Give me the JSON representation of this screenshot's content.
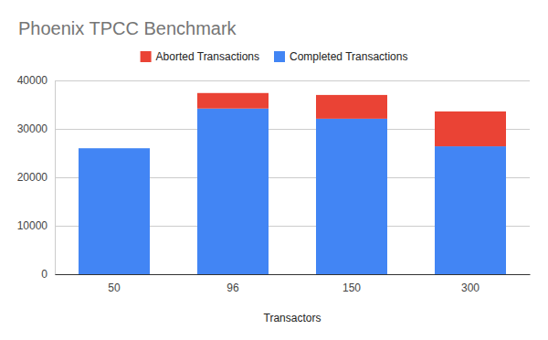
{
  "chart_data": {
    "type": "bar",
    "title": "Phoenix TPCC Benchmark",
    "x_label": "Transactors",
    "categories": [
      "50",
      "96",
      "150",
      "300"
    ],
    "series": [
      {
        "name": "Completed Transactions",
        "color": "#4285f4",
        "values": [
          26000,
          34200,
          32100,
          26400
        ]
      },
      {
        "name": "Aborted Transactions",
        "color": "#ea4335",
        "values": [
          0,
          3200,
          4900,
          7200
        ]
      }
    ],
    "stacked": true,
    "legend": "top",
    "grid": true,
    "ylim": [
      0,
      40000
    ],
    "yticks": [
      0,
      10000,
      20000,
      30000,
      40000
    ]
  }
}
